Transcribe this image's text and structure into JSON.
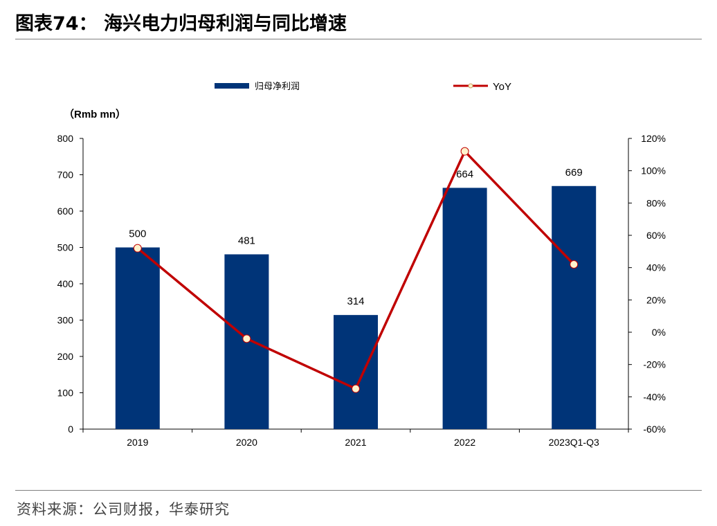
{
  "header": {
    "title": "图表74：  海兴电力归母利润与同比增速"
  },
  "footer": {
    "source": "资料来源：公司财报，华泰研究"
  },
  "colors": {
    "bar": "#003478",
    "line": "#c00000",
    "marker_fill": "#fff2cc",
    "axis": "#000000"
  },
  "chart_data": {
    "type": "bar",
    "categories": [
      "2019",
      "2020",
      "2021",
      "2022",
      "2023Q1-Q3"
    ],
    "y_unit_label": "（Rmb mn）",
    "ylim": [
      0,
      800
    ],
    "y_ticks": [
      "0",
      "100",
      "200",
      "300",
      "400",
      "500",
      "600",
      "700",
      "800"
    ],
    "y2lim": [
      -0.6,
      1.2
    ],
    "y2_ticks": [
      "-60%",
      "-40%",
      "-20%",
      "0%",
      "20%",
      "40%",
      "60%",
      "80%",
      "100%",
      "120%"
    ],
    "legend": {
      "placement": "top",
      "entries": [
        "归母净利润",
        "YoY"
      ]
    },
    "grid": false,
    "series": [
      {
        "name": "归母净利润",
        "type": "bar",
        "axis": "left",
        "values": [
          500,
          481,
          314,
          664,
          669
        ],
        "labels": [
          "500",
          "481",
          "314",
          "664",
          "669"
        ]
      },
      {
        "name": "YoY",
        "type": "line",
        "axis": "right",
        "values": [
          0.52,
          -0.04,
          -0.35,
          1.12,
          0.42
        ]
      }
    ]
  }
}
